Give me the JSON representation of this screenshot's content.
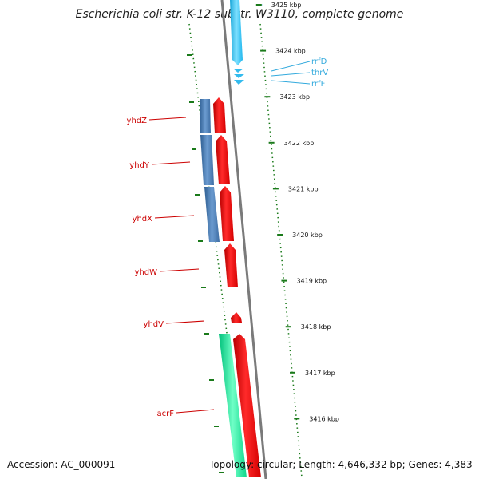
{
  "title": "Escherichia coli str. K-12 substr. W3110, complete genome",
  "footer": {
    "accession": "Accession: AC_000091",
    "topology": "Topology: circular; Length: 4,646,332 bp; Genes: 4,383"
  },
  "colors": {
    "backbone": "#888888",
    "tick": "#1a7a1a",
    "gene_red": "#ff0000",
    "gene_blue": "#4a7fb5",
    "gene_cyan": "#33ccff",
    "gene_green": "#1fe69a",
    "label_red": "#cc0000",
    "label_cyan": "#33aadd"
  },
  "axis": {
    "unit": "kbp",
    "ticks": [
      {
        "kbp": 3425,
        "label": "3425 kbp"
      },
      {
        "kbp": 3424,
        "label": "3424 kbp"
      },
      {
        "kbp": 3423,
        "label": "3423 kbp"
      },
      {
        "kbp": 3422,
        "label": "3422 kbp"
      },
      {
        "kbp": 3421,
        "label": "3421 kbp"
      },
      {
        "kbp": 3420,
        "label": "3420 kbp"
      },
      {
        "kbp": 3419,
        "label": "3419 kbp"
      },
      {
        "kbp": 3418,
        "label": "3418 kbp"
      },
      {
        "kbp": 3417,
        "label": "3417 kbp"
      },
      {
        "kbp": 3416,
        "label": "3416 kbp"
      }
    ]
  },
  "genes": {
    "left_labels": [
      "yhdZ",
      "yhdY",
      "yhdX",
      "yhdW",
      "yhdV",
      "acrF"
    ],
    "right_labels": [
      "rrfD",
      "thrV",
      "rrfF"
    ]
  }
}
